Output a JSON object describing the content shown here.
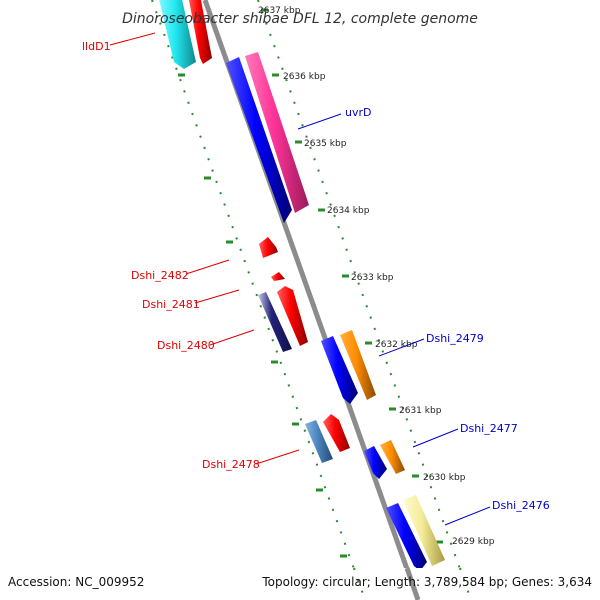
{
  "header": {
    "title": "Dinoroseobacter shibae DFL 12, complete genome"
  },
  "footer": {
    "accession": "Accession: NC_009952",
    "summary": "Topology: circular; Length: 3,789,584 bp; Genes: 3,634"
  },
  "scale": {
    "ticks": [
      {
        "label": "2637 kbp",
        "kbp": 2637
      },
      {
        "label": "2636 kbp",
        "kbp": 2636
      },
      {
        "label": "2635 kbp",
        "kbp": 2635
      },
      {
        "label": "2634 kbp",
        "kbp": 2634
      },
      {
        "label": "2633 kbp",
        "kbp": 2633
      },
      {
        "label": "2632 kbp",
        "kbp": 2632
      },
      {
        "label": "2631 kbp",
        "kbp": 2631
      },
      {
        "label": "2630 kbp",
        "kbp": 2630
      },
      {
        "label": "2629 kbp",
        "kbp": 2629
      }
    ]
  },
  "genes": {
    "forward": [
      {
        "label": "lldD1"
      },
      {
        "label": "Dshi_2482"
      },
      {
        "label": "Dshi_2481"
      },
      {
        "label": "Dshi_2480"
      },
      {
        "label": "Dshi_2478"
      }
    ],
    "reverse": [
      {
        "label": "uvrD"
      },
      {
        "label": "Dshi_2479"
      },
      {
        "label": "Dshi_2477"
      },
      {
        "label": "Dshi_2476"
      }
    ]
  },
  "colors": {
    "backbone": "#8c8c8c",
    "tick": "#2b8a2b",
    "label_forward": "#e00000",
    "label_reverse": "#0000cc",
    "feature_red": "#ff0000",
    "feature_blue": "#0000ff",
    "feature_magenta": "#ff3399",
    "feature_orange": "#ff8c00",
    "feature_cyan": "#22e8f0",
    "feature_steelblue": "#4a86c0",
    "feature_navy": "#22227a",
    "feature_khaki": "#f4ec9a"
  }
}
